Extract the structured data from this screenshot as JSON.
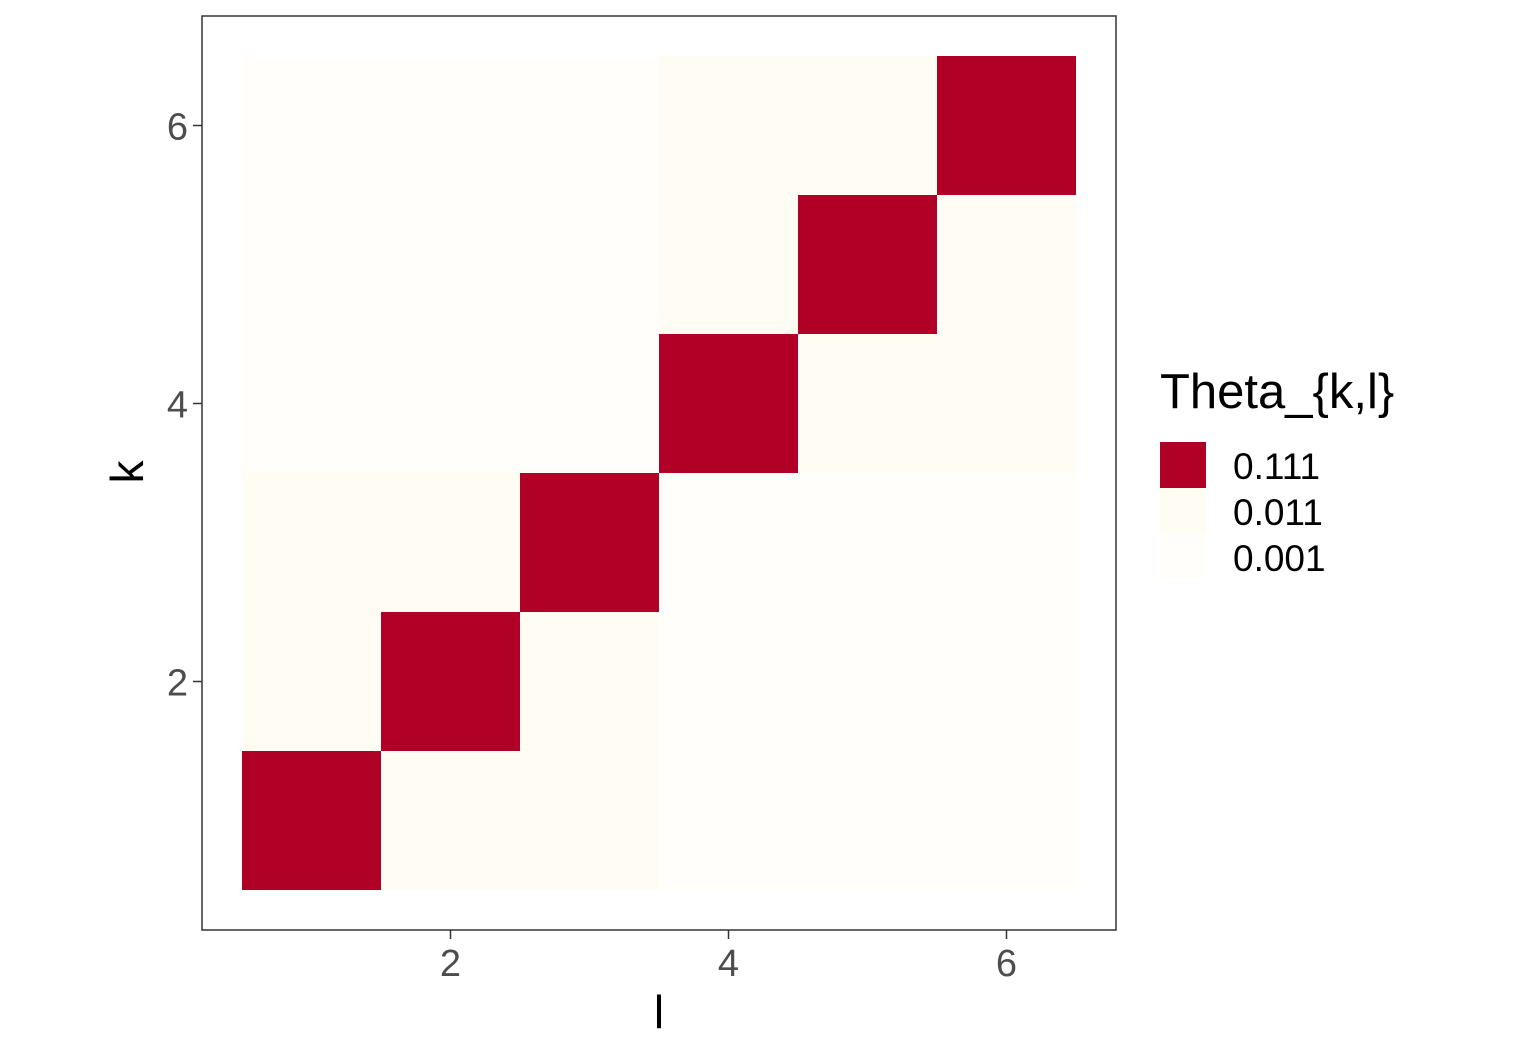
{
  "chart_data": {
    "type": "heatmap",
    "xlabel": "l",
    "ylabel": "k",
    "x_categories": [
      1,
      2,
      3,
      4,
      5,
      6
    ],
    "y_categories": [
      1,
      2,
      3,
      4,
      5,
      6
    ],
    "x_ticks": [
      2,
      4,
      6
    ],
    "y_ticks": [
      2,
      4,
      6
    ],
    "x_tick_labels": [
      "2",
      "4",
      "6"
    ],
    "y_tick_labels": [
      "2",
      "4",
      "6"
    ],
    "xlim": [
      0.5,
      6.5
    ],
    "ylim": [
      0.5,
      6.5
    ],
    "grid": false,
    "legend_position": "right",
    "legend": {
      "title": "Theta_{k,l}",
      "entries": [
        {
          "label": "0.111",
          "color": "#b10026"
        },
        {
          "label": "0.011",
          "color": "#fffdf3"
        },
        {
          "label": "0.001",
          "color": "#fffefb"
        }
      ]
    },
    "colors": {
      "0.111": "#b10026",
      "0.011": "#fffdf3",
      "0.001": "#fffefb"
    },
    "values": [
      {
        "k": 1,
        "l": 1,
        "value": 0.111
      },
      {
        "k": 1,
        "l": 2,
        "value": 0.011
      },
      {
        "k": 1,
        "l": 3,
        "value": 0.011
      },
      {
        "k": 1,
        "l": 4,
        "value": 0.001
      },
      {
        "k": 1,
        "l": 5,
        "value": 0.001
      },
      {
        "k": 1,
        "l": 6,
        "value": 0.001
      },
      {
        "k": 2,
        "l": 1,
        "value": 0.011
      },
      {
        "k": 2,
        "l": 2,
        "value": 0.111
      },
      {
        "k": 2,
        "l": 3,
        "value": 0.011
      },
      {
        "k": 2,
        "l": 4,
        "value": 0.001
      },
      {
        "k": 2,
        "l": 5,
        "value": 0.001
      },
      {
        "k": 2,
        "l": 6,
        "value": 0.001
      },
      {
        "k": 3,
        "l": 1,
        "value": 0.011
      },
      {
        "k": 3,
        "l": 2,
        "value": 0.011
      },
      {
        "k": 3,
        "l": 3,
        "value": 0.111
      },
      {
        "k": 3,
        "l": 4,
        "value": 0.001
      },
      {
        "k": 3,
        "l": 5,
        "value": 0.001
      },
      {
        "k": 3,
        "l": 6,
        "value": 0.001
      },
      {
        "k": 4,
        "l": 1,
        "value": 0.001
      },
      {
        "k": 4,
        "l": 2,
        "value": 0.001
      },
      {
        "k": 4,
        "l": 3,
        "value": 0.001
      },
      {
        "k": 4,
        "l": 4,
        "value": 0.111
      },
      {
        "k": 4,
        "l": 5,
        "value": 0.011
      },
      {
        "k": 4,
        "l": 6,
        "value": 0.011
      },
      {
        "k": 5,
        "l": 1,
        "value": 0.001
      },
      {
        "k": 5,
        "l": 2,
        "value": 0.001
      },
      {
        "k": 5,
        "l": 3,
        "value": 0.001
      },
      {
        "k": 5,
        "l": 4,
        "value": 0.011
      },
      {
        "k": 5,
        "l": 5,
        "value": 0.111
      },
      {
        "k": 5,
        "l": 6,
        "value": 0.011
      },
      {
        "k": 6,
        "l": 1,
        "value": 0.001
      },
      {
        "k": 6,
        "l": 2,
        "value": 0.001
      },
      {
        "k": 6,
        "l": 3,
        "value": 0.001
      },
      {
        "k": 6,
        "l": 4,
        "value": 0.011
      },
      {
        "k": 6,
        "l": 5,
        "value": 0.011
      },
      {
        "k": 6,
        "l": 6,
        "value": 0.111
      }
    ]
  }
}
